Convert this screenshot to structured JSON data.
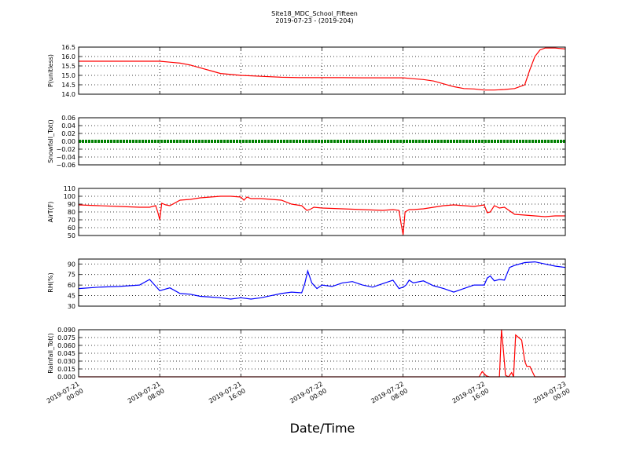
{
  "title": "Site18_MDC_School_Fifteen",
  "subtitle": "2019-07-23 - (2019-204)",
  "xlabel": "Date/Time",
  "x_ticks": [
    {
      "line1": "2019-07-21",
      "line2": "00:00",
      "hour": 0
    },
    {
      "line1": "2019-07-21",
      "line2": "08:00",
      "hour": 8
    },
    {
      "line1": "2019-07-21",
      "line2": "16:00",
      "hour": 16
    },
    {
      "line1": "2019-07-22",
      "line2": "00:00",
      "hour": 24
    },
    {
      "line1": "2019-07-22",
      "line2": "08:00",
      "hour": 32
    },
    {
      "line1": "2019-07-22",
      "line2": "16:00",
      "hour": 40
    },
    {
      "line1": "2019-07-23",
      "line2": "00:00",
      "hour": 48
    }
  ],
  "chart_data": [
    {
      "type": "line",
      "ylabel": "P(unitless)",
      "ylim": [
        14.0,
        16.5
      ],
      "yticks": [
        "14.0",
        "14.5",
        "15.0",
        "15.5",
        "16.0",
        "16.5"
      ],
      "color": "#ff0000",
      "series": [
        {
          "x": [
            0,
            2,
            4,
            6,
            8,
            9,
            10,
            11,
            12,
            13,
            14,
            16,
            18,
            20,
            22,
            24,
            26,
            28,
            30,
            32,
            33,
            34,
            35,
            36,
            37,
            38,
            39,
            40,
            41,
            42,
            43,
            44,
            44.5,
            45,
            45.5,
            46,
            47,
            48
          ],
          "y": [
            15.75,
            15.75,
            15.75,
            15.75,
            15.75,
            15.7,
            15.65,
            15.55,
            15.4,
            15.25,
            15.1,
            15.0,
            14.95,
            14.9,
            14.88,
            14.88,
            14.88,
            14.87,
            14.87,
            14.87,
            14.82,
            14.78,
            14.7,
            14.55,
            14.4,
            14.3,
            14.28,
            14.22,
            14.22,
            14.25,
            14.3,
            14.5,
            15.3,
            16.0,
            16.35,
            16.45,
            16.45,
            16.4
          ]
        }
      ]
    },
    {
      "type": "line",
      "ylabel": "Snowfall_Tot()",
      "ylim": [
        -0.06,
        0.06
      ],
      "yticks": [
        "−0.06",
        "−0.04",
        "−0.02",
        "0.00",
        "0.02",
        "0.04",
        "0.06"
      ],
      "color": "#008000",
      "series": [
        {
          "x": [
            0,
            48
          ],
          "y": [
            0,
            0
          ]
        }
      ]
    },
    {
      "type": "line",
      "ylabel": "AirT(F)",
      "ylim": [
        50,
        110
      ],
      "yticks": [
        "50",
        "60",
        "70",
        "80",
        "90",
        "100",
        "110"
      ],
      "color": "#ff0000",
      "series": [
        {
          "x": [
            0,
            2,
            4,
            6,
            7,
            7.6,
            7.8,
            8.0,
            8.2,
            8.6,
            9,
            10,
            11,
            12,
            13,
            14,
            15,
            16,
            16.3,
            16.6,
            17,
            18,
            19,
            20,
            21,
            22,
            22.5,
            22.8,
            23.2,
            24,
            26,
            28,
            30,
            31,
            31.6,
            31.8,
            32,
            32.2,
            32.6,
            33,
            34,
            35,
            36,
            37,
            38,
            39,
            40,
            40.3,
            40.6,
            41,
            41.5,
            42,
            43,
            44,
            46,
            47,
            48
          ],
          "y": [
            89,
            88,
            87,
            86,
            86,
            88,
            80,
            70,
            91,
            89,
            88,
            95,
            96,
            98,
            99,
            100,
            100,
            99,
            95,
            99,
            97,
            97,
            96,
            95,
            90,
            88,
            82,
            83,
            86,
            85,
            84,
            83,
            82,
            83,
            82,
            65,
            51,
            80,
            83,
            83,
            84,
            86,
            88,
            89,
            88,
            87,
            89,
            79,
            80,
            88,
            85,
            86,
            77,
            76,
            74,
            75,
            75
          ]
        }
      ]
    },
    {
      "type": "line",
      "ylabel": "RH(%)",
      "ylim": [
        30,
        97
      ],
      "yticks": [
        "30",
        "45",
        "60",
        "75",
        "90"
      ],
      "color": "#0000ff",
      "series": [
        {
          "x": [
            0,
            2,
            4,
            5,
            6,
            7,
            7.5,
            8,
            9,
            10,
            11,
            12,
            13,
            14,
            15,
            16,
            17,
            18,
            19,
            20,
            21,
            22,
            22.3,
            22.6,
            23,
            23.5,
            24,
            25,
            26,
            27,
            28,
            29,
            30,
            31,
            31.6,
            32,
            32.3,
            32.6,
            33,
            34,
            35,
            36,
            37,
            38,
            39,
            40,
            40.3,
            40.6,
            41,
            41.5,
            42,
            42.5,
            43,
            44,
            45,
            46,
            47,
            48
          ],
          "y": [
            55,
            57,
            58,
            59,
            60,
            68,
            60,
            52,
            56,
            48,
            47,
            44,
            43,
            42,
            40,
            42,
            40,
            42,
            45,
            48,
            50,
            49,
            62,
            80,
            63,
            55,
            60,
            58,
            63,
            65,
            60,
            57,
            62,
            67,
            55,
            57,
            60,
            67,
            63,
            66,
            59,
            55,
            50,
            55,
            60,
            60,
            70,
            73,
            66,
            68,
            67,
            85,
            88,
            92,
            93,
            90,
            87,
            85
          ]
        }
      ]
    },
    {
      "type": "line",
      "ylabel": "Rainfall_Tot()",
      "ylim": [
        0,
        0.09
      ],
      "yticks": [
        "0.000",
        "0.015",
        "0.030",
        "0.045",
        "0.060",
        "0.075",
        "0.090"
      ],
      "color": "#ff0000",
      "series": [
        {
          "x": [
            0,
            39.5,
            39.8,
            40.2,
            40.5,
            41.5,
            41.7,
            41.9,
            42.1,
            42.4,
            42.7,
            42.9,
            43.1,
            43.4,
            43.7,
            44,
            44.2,
            44.5,
            44.8,
            45,
            45.2,
            48
          ],
          "y": [
            0,
            0,
            0.01,
            0.002,
            0,
            0,
            0.09,
            0.05,
            0.003,
            0,
            0.008,
            0,
            0.08,
            0.075,
            0.07,
            0.03,
            0.02,
            0.02,
            0.008,
            0,
            0,
            0
          ]
        }
      ]
    }
  ]
}
